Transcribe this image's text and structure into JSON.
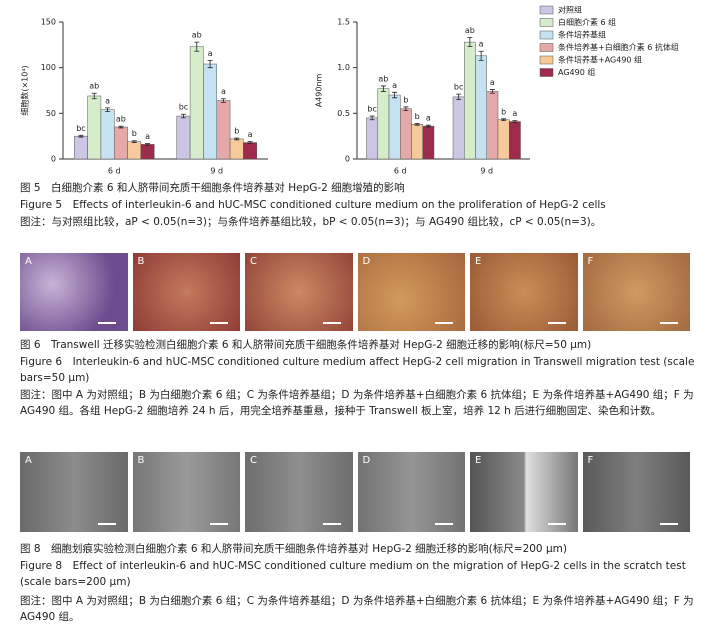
{
  "legend": [
    {
      "name": "对照组",
      "color": "#cdc5e4"
    },
    {
      "name": "白细胞介素 6 组",
      "color": "#d6edcb"
    },
    {
      "name": "条件培养基组",
      "color": "#c6e2f2"
    },
    {
      "name": "条件培养基+白细胞介素 6 抗体组",
      "color": "#e6a9a9"
    },
    {
      "name": "条件培养基+AG490 组",
      "color": "#f7c99b"
    },
    {
      "name": "AG490 组",
      "color": "#9e2a4c"
    }
  ],
  "chart_data": [
    {
      "type": "bar",
      "ylabel": "细胞数(×10⁴)",
      "categories": [
        "6 d",
        "9 d"
      ],
      "ylim": [
        0,
        150
      ],
      "yticks": [
        0,
        50,
        100,
        150
      ],
      "series": [
        {
          "values": [
            25,
            47
          ],
          "errors": [
            1,
            2
          ],
          "labels": [
            "bc",
            "bc"
          ]
        },
        {
          "values": [
            69,
            123
          ],
          "errors": [
            3,
            5
          ],
          "labels": [
            "ab",
            "ab"
          ]
        },
        {
          "values": [
            54,
            104
          ],
          "errors": [
            2,
            4
          ],
          "labels": [
            "a",
            "a"
          ]
        },
        {
          "values": [
            35,
            64
          ],
          "errors": [
            1,
            2
          ],
          "labels": [
            "ab",
            "a"
          ]
        },
        {
          "values": [
            19,
            22
          ],
          "errors": [
            1,
            1
          ],
          "labels": [
            "b",
            "b"
          ]
        },
        {
          "values": [
            16,
            18
          ],
          "errors": [
            1,
            1
          ],
          "labels": [
            "a",
            "a"
          ]
        }
      ]
    },
    {
      "type": "bar",
      "ylabel": "A490nm",
      "categories": [
        "6 d",
        "9 d"
      ],
      "ylim": [
        0,
        1.5
      ],
      "yticks": [
        0,
        0.5,
        {
          "value": 1,
          "label": "1.0"
        },
        1.5
      ],
      "series": [
        {
          "values": [
            0.45,
            0.68
          ],
          "errors": [
            0.02,
            0.03
          ],
          "labels": [
            "bc",
            "bc"
          ]
        },
        {
          "values": [
            0.77,
            1.28
          ],
          "errors": [
            0.03,
            0.05
          ],
          "labels": [
            "ab",
            "ab"
          ]
        },
        {
          "values": [
            0.7,
            1.13
          ],
          "errors": [
            0.03,
            0.05
          ],
          "labels": [
            "a",
            "a"
          ]
        },
        {
          "values": [
            0.55,
            0.74
          ],
          "errors": [
            0.02,
            0.02
          ],
          "labels": [
            "b",
            "a"
          ]
        },
        {
          "values": [
            0.38,
            0.43
          ],
          "errors": [
            0.01,
            0.01
          ],
          "labels": [
            "b",
            "b"
          ]
        },
        {
          "values": [
            0.36,
            0.41
          ],
          "errors": [
            0.01,
            0.01
          ],
          "labels": [
            "a",
            "a"
          ]
        }
      ]
    }
  ],
  "figure5": {
    "title_cn": "图 5　白细胞介素 6 和人脐带间充质干细胞条件培养基对 HepG-2 细胞增殖的影响",
    "title_en": "Figure 5　Effects of interleukin-6 and hUC-MSC conditioned culture medium on the proliferation of HepG-2 cells",
    "note": "图注：与对照组比较，aP < 0.05(n=3)；与条件培养基组比较，bP < 0.05(n=3)；与 AG490 组比较，cP < 0.05(n=3)。"
  },
  "figure6": {
    "panels": [
      "A",
      "B",
      "C",
      "D",
      "E",
      "F"
    ],
    "title_cn": "图 6　Transwell 迁移实验检测白细胞介素 6 和人脐带间充质干细胞条件培养基对 HepG-2 细胞迁移的影响(标尺=50 μm)",
    "title_en": "Figure 6　Interleukin-6 and hUC-MSC conditioned culture medium affect HepG-2 cell migration in Transwell migration test (scale bars=50 μm)",
    "note": "图注：图中 A 为对照组；B 为白细胞介素 6 组；C 为条件培养基组；D 为条件培养基+白细胞介素 6 抗体组；E 为条件培养基+AG490 组；F 为 AG490 组。各组 HepG-2 细胞培养 24 h 后，用完全培养基重悬，接种于 Transwell 板上室，培养 12 h 后进行细胞固定、染色和计数。"
  },
  "figure8": {
    "panels": [
      "A",
      "B",
      "C",
      "D",
      "E",
      "F"
    ],
    "title_cn": "图 8　细胞划痕实验检测白细胞介素 6 和人脐带间充质干细胞条件培养基对 HepG-2 细胞迁移的影响(标尺=200 μm)",
    "title_en": "Figure 8　Effect of interleukin-6 and hUC-MSC conditioned culture medium on the migration of HepG-2 cells in the scratch test (scale bars=200 μm)",
    "note": "图注：图中 A 为对照组；B 为白细胞介素 6 组；C 为条件培养基组；D 为条件培养基+白细胞介素 6 抗体组；E 为条件培养基+AG490 组；F 为 AG490 组。"
  }
}
